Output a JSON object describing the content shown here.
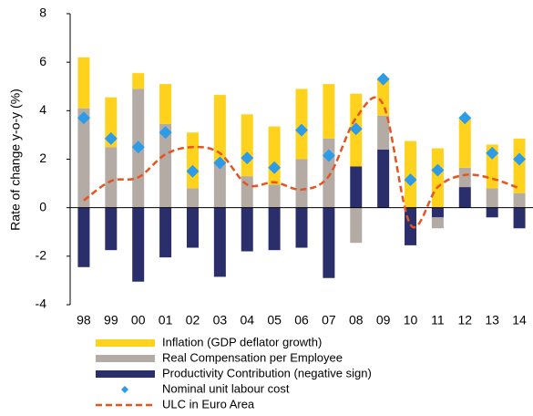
{
  "chart_data": {
    "type": "stacked-bar-line",
    "y_label": "Rate of change y-o-y (%)",
    "categories": [
      "98",
      "99",
      "00",
      "01",
      "02",
      "03",
      "04",
      "05",
      "06",
      "07",
      "08",
      "09",
      "10",
      "11",
      "12",
      "13",
      "14"
    ],
    "series": [
      {
        "name": "Inflation (GDP deflator growth)",
        "color": "#ffd21e",
        "kind": "bar",
        "values": [
          2.1,
          2.05,
          0.65,
          1.65,
          2.3,
          2.75,
          2.55,
          2.4,
          2.9,
          2.25,
          3.0,
          1.5,
          2.75,
          2.45,
          2.05,
          1.8,
          2.25
        ]
      },
      {
        "name": "Real Compensation per Employee",
        "color": "#b5aba5",
        "kind": "bar",
        "values": [
          4.1,
          2.5,
          4.9,
          3.45,
          0.8,
          1.9,
          1.3,
          0.95,
          2.0,
          2.85,
          -1.45,
          1.4,
          0,
          -0.45,
          0.8,
          0.8,
          0.6
        ]
      },
      {
        "name": "Productivity Contribution (negative sign)",
        "color": "#2a2f6b",
        "kind": "bar",
        "values": [
          -2.45,
          -1.75,
          -3.05,
          -2.05,
          -1.65,
          -2.85,
          -1.8,
          -1.75,
          -1.65,
          -2.9,
          1.7,
          2.4,
          -1.55,
          -0.4,
          0.85,
          -0.4,
          -0.85
        ]
      },
      {
        "name": "Nominal unit labour cost",
        "color": "#2e9be6",
        "kind": "marker",
        "values": [
          3.7,
          2.85,
          2.5,
          3.1,
          1.5,
          1.85,
          2.05,
          1.65,
          3.2,
          2.15,
          3.25,
          5.3,
          1.15,
          1.55,
          3.7,
          2.25,
          2.0
        ]
      },
      {
        "name": "ULC in Euro Area",
        "color": "#e8531e",
        "kind": "line",
        "values": [
          0.3,
          1.1,
          1.25,
          2.2,
          2.5,
          2.25,
          0.95,
          1.05,
          0.75,
          1.3,
          3.7,
          4.25,
          -0.7,
          0.85,
          1.35,
          1.2,
          0.8
        ]
      }
    ],
    "ylim": [
      -4,
      8
    ],
    "yticks": [
      -4,
      -2,
      0,
      2,
      4,
      6,
      8
    ]
  }
}
